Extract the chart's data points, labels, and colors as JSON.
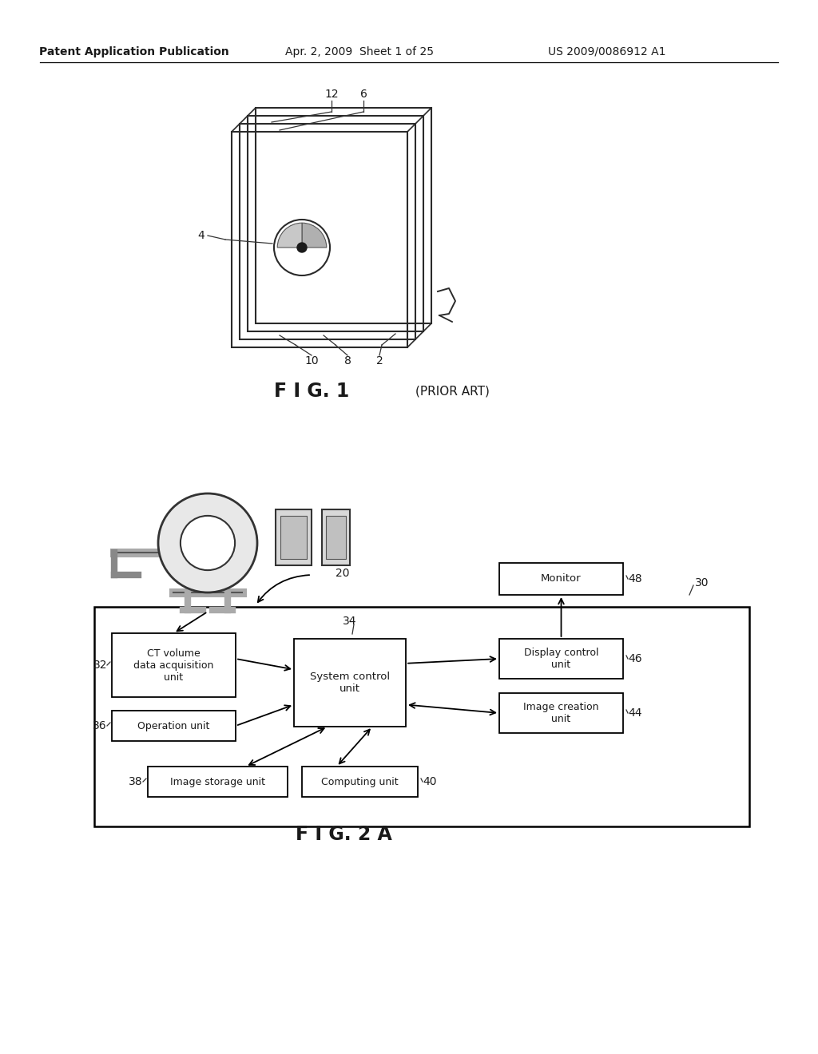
{
  "bg_color": "#ffffff",
  "header_left": "Patent Application Publication",
  "header_mid": "Apr. 2, 2009  Sheet 1 of 25",
  "header_right": "US 2009/0086912 A1",
  "fig1_caption": "F I G. 1",
  "fig1_caption_sub": "(PRIOR ART)",
  "fig2a_caption": "F I G. 2 A",
  "text_color": "#1a1a1a"
}
